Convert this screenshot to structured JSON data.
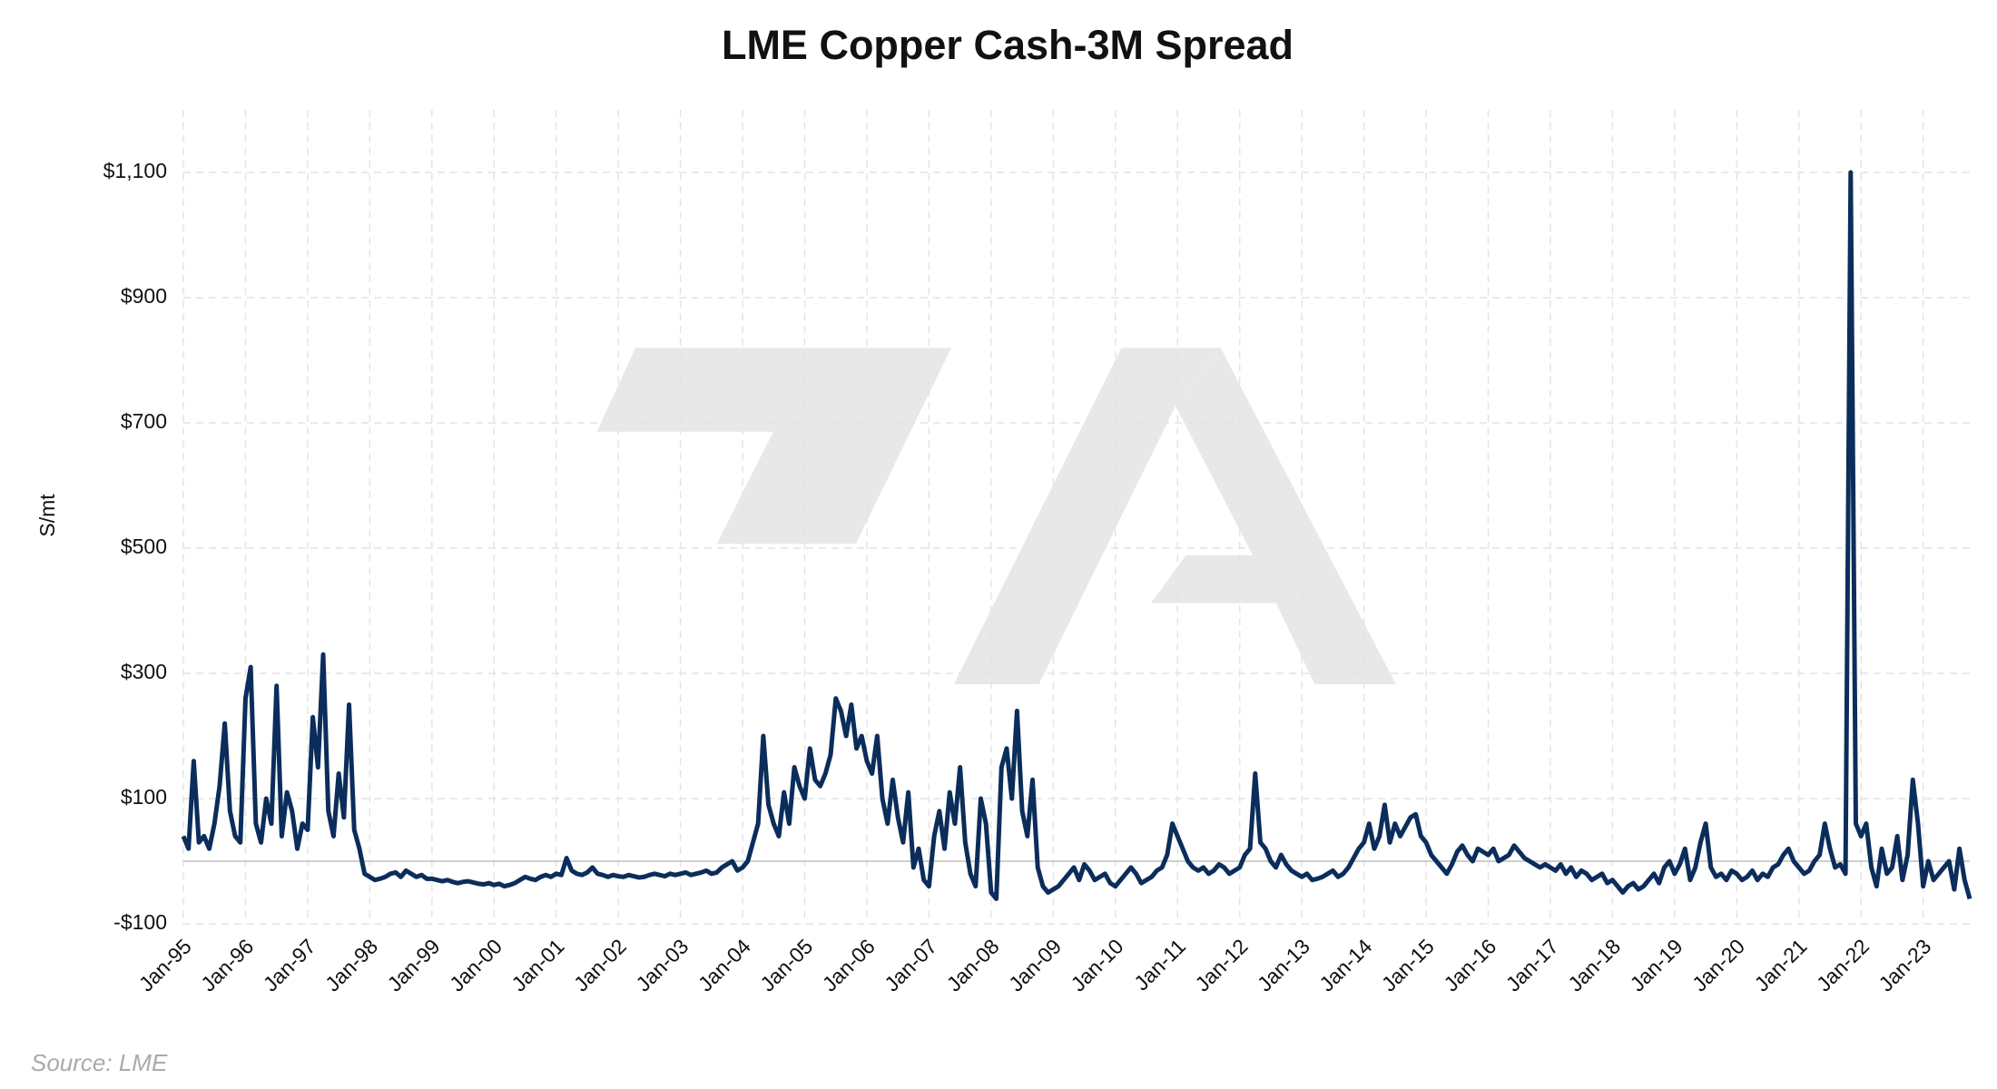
{
  "chart_data": {
    "type": "line",
    "title": "LME Copper Cash-3M Spread",
    "y_label": "S/mt",
    "source": "Source: LME",
    "color": "#0b2d5b",
    "grid": true,
    "ylim": [
      -100,
      1200
    ],
    "yticks": [
      {
        "value": -100,
        "label": "-$100"
      },
      {
        "value": 100,
        "label": "$100"
      },
      {
        "value": 300,
        "label": "$300"
      },
      {
        "value": 500,
        "label": "$500"
      },
      {
        "value": 700,
        "label": "$700"
      },
      {
        "value": 900,
        "label": "$900"
      },
      {
        "value": 1100,
        "label": "$1,100"
      }
    ],
    "categories": [
      "Jan-95",
      null,
      null,
      null,
      null,
      null,
      null,
      null,
      null,
      null,
      null,
      null,
      "Jan-96",
      null,
      null,
      null,
      null,
      null,
      null,
      null,
      null,
      null,
      null,
      null,
      "Jan-97",
      null,
      null,
      null,
      null,
      null,
      null,
      null,
      null,
      null,
      null,
      null,
      "Jan-98",
      null,
      null,
      null,
      null,
      null,
      null,
      null,
      null,
      null,
      null,
      null,
      "Jan-99",
      null,
      null,
      null,
      null,
      null,
      null,
      null,
      null,
      null,
      null,
      null,
      "Jan-00",
      null,
      null,
      null,
      null,
      null,
      null,
      null,
      null,
      null,
      null,
      null,
      "Jan-01",
      null,
      null,
      null,
      null,
      null,
      null,
      null,
      null,
      null,
      null,
      null,
      "Jan-02",
      null,
      null,
      null,
      null,
      null,
      null,
      null,
      null,
      null,
      null,
      null,
      "Jan-03",
      null,
      null,
      null,
      null,
      null,
      null,
      null,
      null,
      null,
      null,
      null,
      "Jan-04",
      null,
      null,
      null,
      null,
      null,
      null,
      null,
      null,
      null,
      null,
      null,
      "Jan-05",
      null,
      null,
      null,
      null,
      null,
      null,
      null,
      null,
      null,
      null,
      null,
      "Jan-06",
      null,
      null,
      null,
      null,
      null,
      null,
      null,
      null,
      null,
      null,
      null,
      "Jan-07",
      null,
      null,
      null,
      null,
      null,
      null,
      null,
      null,
      null,
      null,
      null,
      "Jan-08",
      null,
      null,
      null,
      null,
      null,
      null,
      null,
      null,
      null,
      null,
      null,
      "Jan-09",
      null,
      null,
      null,
      null,
      null,
      null,
      null,
      null,
      null,
      null,
      null,
      "Jan-10",
      null,
      null,
      null,
      null,
      null,
      null,
      null,
      null,
      null,
      null,
      null,
      "Jan-11",
      null,
      null,
      null,
      null,
      null,
      null,
      null,
      null,
      null,
      null,
      null,
      "Jan-12",
      null,
      null,
      null,
      null,
      null,
      null,
      null,
      null,
      null,
      null,
      null,
      "Jan-13",
      null,
      null,
      null,
      null,
      null,
      null,
      null,
      null,
      null,
      null,
      null,
      "Jan-14",
      null,
      null,
      null,
      null,
      null,
      null,
      null,
      null,
      null,
      null,
      null,
      "Jan-15",
      null,
      null,
      null,
      null,
      null,
      null,
      null,
      null,
      null,
      null,
      null,
      "Jan-16",
      null,
      null,
      null,
      null,
      null,
      null,
      null,
      null,
      null,
      null,
      null,
      "Jan-17",
      null,
      null,
      null,
      null,
      null,
      null,
      null,
      null,
      null,
      null,
      null,
      "Jan-18",
      null,
      null,
      null,
      null,
      null,
      null,
      null,
      null,
      null,
      null,
      null,
      "Jan-19",
      null,
      null,
      null,
      null,
      null,
      null,
      null,
      null,
      null,
      null,
      null,
      "Jan-20",
      null,
      null,
      null,
      null,
      null,
      null,
      null,
      null,
      null,
      null,
      null,
      "Jan-21",
      null,
      null,
      null,
      null,
      null,
      null,
      null,
      null,
      null,
      null,
      null,
      "Jan-22",
      null,
      null,
      null,
      null,
      null,
      null,
      null,
      null,
      null,
      null,
      null,
      "Jan-23",
      null,
      null,
      null,
      null,
      null,
      null,
      null,
      null,
      null
    ],
    "values": [
      40,
      20,
      160,
      30,
      40,
      20,
      60,
      120,
      220,
      80,
      40,
      30,
      260,
      310,
      60,
      30,
      100,
      60,
      280,
      40,
      110,
      80,
      20,
      60,
      50,
      230,
      150,
      330,
      80,
      40,
      140,
      70,
      250,
      50,
      20,
      -20,
      -25,
      -30,
      -28,
      -25,
      -20,
      -18,
      -25,
      -15,
      -20,
      -25,
      -22,
      -28,
      -28,
      -30,
      -32,
      -30,
      -33,
      -35,
      -33,
      -32,
      -34,
      -36,
      -37,
      -35,
      -38,
      -36,
      -40,
      -38,
      -35,
      -30,
      -25,
      -28,
      -30,
      -25,
      -22,
      -25,
      -20,
      -22,
      5,
      -15,
      -20,
      -22,
      -18,
      -10,
      -20,
      -22,
      -25,
      -22,
      -24,
      -25,
      -22,
      -24,
      -26,
      -25,
      -22,
      -20,
      -22,
      -24,
      -20,
      -22,
      -20,
      -18,
      -22,
      -20,
      -18,
      -15,
      -20,
      -18,
      -10,
      -5,
      0,
      -15,
      -10,
      0,
      30,
      60,
      200,
      90,
      60,
      40,
      110,
      60,
      150,
      120,
      100,
      180,
      130,
      120,
      140,
      170,
      260,
      240,
      200,
      250,
      180,
      200,
      160,
      140,
      200,
      100,
      60,
      130,
      70,
      30,
      110,
      -10,
      20,
      -30,
      -40,
      40,
      80,
      20,
      110,
      60,
      150,
      30,
      -20,
      -40,
      100,
      60,
      -50,
      -60,
      150,
      180,
      100,
      240,
      80,
      40,
      130,
      -10,
      -40,
      -50,
      -45,
      -40,
      -30,
      -20,
      -10,
      -30,
      -5,
      -15,
      -30,
      -25,
      -20,
      -35,
      -40,
      -30,
      -20,
      -10,
      -20,
      -35,
      -30,
      -25,
      -15,
      -10,
      10,
      60,
      40,
      20,
      0,
      -10,
      -15,
      -10,
      -20,
      -15,
      -5,
      -10,
      -20,
      -15,
      -10,
      10,
      20,
      140,
      30,
      20,
      0,
      -10,
      10,
      -5,
      -15,
      -20,
      -25,
      -20,
      -30,
      -28,
      -25,
      -20,
      -15,
      -25,
      -20,
      -10,
      5,
      20,
      30,
      60,
      20,
      40,
      90,
      30,
      60,
      40,
      55,
      70,
      75,
      40,
      30,
      10,
      0,
      -10,
      -20,
      -5,
      15,
      25,
      10,
      0,
      20,
      15,
      10,
      20,
      0,
      5,
      10,
      25,
      15,
      5,
      0,
      -5,
      -10,
      -5,
      -10,
      -15,
      -5,
      -20,
      -10,
      -25,
      -15,
      -20,
      -30,
      -25,
      -20,
      -35,
      -30,
      -40,
      -50,
      -40,
      -35,
      -45,
      -40,
      -30,
      -20,
      -35,
      -10,
      0,
      -20,
      -5,
      20,
      -30,
      -10,
      30,
      60,
      -10,
      -25,
      -20,
      -30,
      -15,
      -20,
      -30,
      -25,
      -15,
      -30,
      -20,
      -25,
      -10,
      -5,
      10,
      20,
      0,
      -10,
      -20,
      -15,
      0,
      10,
      60,
      20,
      -10,
      -5,
      -20,
      1100,
      60,
      40,
      60,
      -10,
      -40,
      20,
      -20,
      -10,
      40,
      -30,
      10,
      130,
      60,
      -40,
      0,
      -30,
      -20,
      -10,
      0,
      -45,
      20,
      -30,
      -60
    ]
  }
}
